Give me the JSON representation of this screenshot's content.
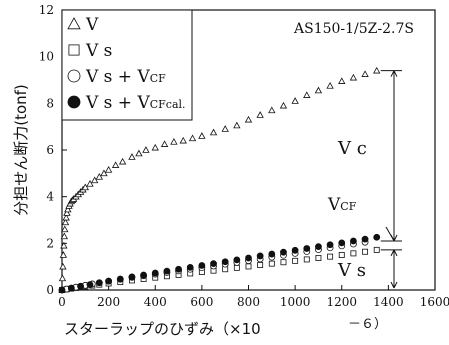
{
  "chart_data": {
    "type": "scatter",
    "title": "AS150-1/5Z-2.7S",
    "xlabel": "スターラップのひずみ（×10",
    "xlabel_exp": "－６）",
    "ylabel": "分担せん断力(tonf)",
    "xlim": [
      0,
      1600
    ],
    "ylim": [
      0,
      12
    ],
    "xticks": [
      0,
      200,
      400,
      600,
      800,
      1000,
      1200,
      1400,
      1600
    ],
    "yticks": [
      0,
      2,
      4,
      6,
      8,
      10,
      12
    ],
    "legend": {
      "placement": "top-left",
      "items": [
        {
          "marker": "triangle",
          "text": "V"
        },
        {
          "marker": "square",
          "text": "V s"
        },
        {
          "marker": "circle-open",
          "text": "V s + V",
          "sub": "CF"
        },
        {
          "marker": "circle-filled",
          "text": "V s + V",
          "sub": "CFcal."
        }
      ]
    },
    "annotations": {
      "vc": "V c",
      "vcf_main": "V",
      "vcf_sub": "CF",
      "vs": "V s"
    },
    "series": [
      {
        "name": "V",
        "marker": "triangle",
        "x": [
          0,
          2,
          4,
          6,
          8,
          10,
          12,
          15,
          18,
          21,
          25,
          30,
          35,
          40,
          45,
          50,
          60,
          70,
          80,
          90,
          100,
          120,
          140,
          160,
          180,
          200,
          230,
          260,
          300,
          330,
          360,
          400,
          440,
          480,
          520,
          560,
          600,
          650,
          700,
          750,
          800,
          850,
          900,
          950,
          1000,
          1050,
          1100,
          1150,
          1200,
          1250,
          1300,
          1350
        ],
        "y": [
          0,
          0.5,
          1.0,
          1.5,
          1.9,
          2.3,
          2.6,
          2.9,
          3.1,
          3.3,
          3.45,
          3.6,
          3.7,
          3.8,
          3.85,
          3.9,
          4.0,
          4.1,
          4.2,
          4.3,
          4.4,
          4.55,
          4.7,
          4.85,
          5.0,
          5.15,
          5.35,
          5.5,
          5.7,
          5.85,
          6.0,
          6.1,
          6.25,
          6.35,
          6.4,
          6.5,
          6.6,
          6.75,
          6.9,
          7.05,
          7.3,
          7.5,
          7.7,
          7.9,
          8.1,
          8.35,
          8.55,
          8.75,
          8.95,
          9.1,
          9.25,
          9.4
        ]
      },
      {
        "name": "V s",
        "marker": "square",
        "x": [
          0,
          20,
          40,
          60,
          80,
          100,
          130,
          160,
          200,
          250,
          300,
          350,
          400,
          450,
          500,
          550,
          600,
          650,
          700,
          750,
          800,
          850,
          900,
          950,
          1000,
          1050,
          1100,
          1150,
          1200,
          1250,
          1300,
          1350
        ],
        "y": [
          0,
          0.03,
          0.06,
          0.09,
          0.12,
          0.15,
          0.19,
          0.23,
          0.28,
          0.34,
          0.41,
          0.47,
          0.53,
          0.59,
          0.65,
          0.71,
          0.77,
          0.83,
          0.89,
          0.95,
          1.01,
          1.07,
          1.13,
          1.19,
          1.25,
          1.31,
          1.37,
          1.43,
          1.5,
          1.57,
          1.64,
          1.72
        ]
      },
      {
        "name": "V s + V",
        "marker": "circle-open",
        "x": [
          0,
          20,
          40,
          60,
          80,
          100,
          130,
          160,
          200,
          250,
          300,
          350,
          400,
          450,
          500,
          550,
          600,
          650,
          700,
          750,
          800,
          850,
          900,
          950,
          1000,
          1050,
          1100,
          1150,
          1200,
          1250,
          1300
        ],
        "y": [
          0,
          0.04,
          0.08,
          0.12,
          0.16,
          0.2,
          0.26,
          0.31,
          0.38,
          0.46,
          0.54,
          0.61,
          0.68,
          0.75,
          0.82,
          0.89,
          0.96,
          1.03,
          1.11,
          1.18,
          1.26,
          1.33,
          1.41,
          1.49,
          1.57,
          1.65,
          1.73,
          1.81,
          1.89,
          1.97,
          2.05
        ]
      },
      {
        "name": "V s + V",
        "marker": "circle-filled",
        "x": [
          0,
          40,
          80,
          120,
          160,
          200,
          250,
          300,
          350,
          400,
          450,
          500,
          550,
          600,
          650,
          700,
          750,
          800,
          850,
          900,
          950,
          1000,
          1050,
          1100,
          1150,
          1200,
          1250,
          1300,
          1350
        ],
        "y": [
          0,
          0.08,
          0.16,
          0.23,
          0.31,
          0.38,
          0.47,
          0.56,
          0.64,
          0.73,
          0.81,
          0.89,
          0.97,
          1.05,
          1.13,
          1.21,
          1.29,
          1.37,
          1.46,
          1.54,
          1.62,
          1.7,
          1.78,
          1.86,
          1.94,
          2.02,
          2.1,
          2.18,
          2.26
        ]
      }
    ]
  }
}
